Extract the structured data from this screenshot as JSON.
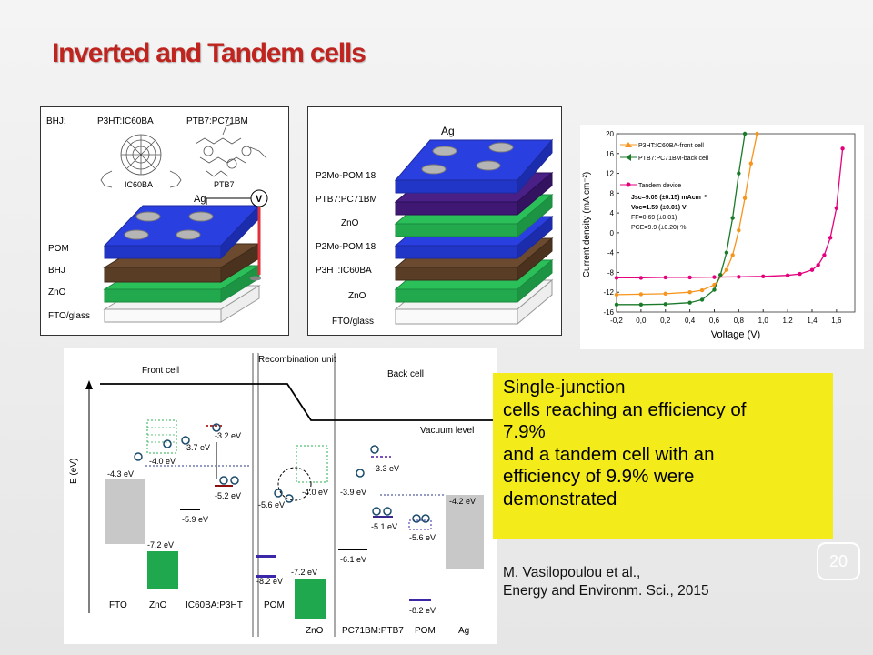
{
  "title": "Inverted and Tandem cells",
  "page_number": "20",
  "summary_box": {
    "color": "#f4eb1b",
    "lines": [
      "Single-junction",
      "cells reaching an efficiency of",
      "7.9%",
      "and a tandem cell with an",
      "efficiency of 9.9% were",
      "demonstrated"
    ]
  },
  "citation": {
    "line1": "M. Vasilopoulou et al.,",
    "line2": "Energy and Environm. Sci., 2015"
  },
  "device1": {
    "bhj_label": "BHJ:",
    "mol1": "P3HT:IC60BA",
    "mol2": "PTB7:PC71BM",
    "mol1_name": "IC60BA",
    "mol2_name": "PTB7",
    "ag": "Ag",
    "v": "V",
    "layers": [
      "POM",
      "BHJ",
      "ZnO",
      "FTO/glass"
    ]
  },
  "device2": {
    "ag": "Ag",
    "layers": [
      "P2Mo-POM 18",
      "PTB7:PC71BM",
      "ZnO",
      "P2Mo-POM 18",
      "P3HT:IC60BA",
      "ZnO",
      "FTO/glass"
    ]
  },
  "jv_chart": {
    "ylabel": "Current density (mA cm⁻²)",
    "xlabel": "Voltage (V)",
    "legend": [
      "P3HT:IC60BA-front cell",
      "PTB7:PC71BM-back cell",
      "Tandem device"
    ],
    "params": [
      "Jsc=9.05 (±0.15) mAcm⁻²",
      "Voc=1.59 (±0.01) V",
      "FF=0.69 (±0.01)",
      "PCE=9.9 (±0.20) %"
    ],
    "xticks": [
      "-0,2",
      "0,0",
      "0,2",
      "0,4",
      "0,6",
      "0,8",
      "1,0",
      "1,2",
      "1,4",
      "1,6"
    ],
    "yticks": [
      "20",
      "16",
      "12",
      "8",
      "4",
      "0",
      "-4",
      "-8",
      "-12",
      "-16"
    ]
  },
  "chart_data": {
    "type": "line",
    "xlabel": "Voltage (V)",
    "ylabel": "Current density (mA cm⁻²)",
    "xlim": [
      -0.2,
      1.75
    ],
    "ylim": [
      -16,
      20
    ],
    "series": [
      {
        "name": "P3HT:IC60BA-front cell",
        "color": "#f7941d",
        "x": [
          -0.2,
          0.0,
          0.2,
          0.4,
          0.5,
          0.6,
          0.7,
          0.75,
          0.8,
          0.85,
          0.9,
          0.95
        ],
        "y": [
          -12.5,
          -12.4,
          -12.3,
          -12.0,
          -11.6,
          -10.5,
          -7.5,
          -4.5,
          0.5,
          7,
          14,
          20
        ]
      },
      {
        "name": "PTB7:PC71BM-back cell",
        "color": "#1a7a2a",
        "x": [
          -0.2,
          0.0,
          0.2,
          0.4,
          0.5,
          0.6,
          0.65,
          0.7,
          0.75,
          0.8,
          0.85
        ],
        "y": [
          -14.5,
          -14.5,
          -14.4,
          -14.1,
          -13.5,
          -11.5,
          -8.5,
          -4.0,
          3.0,
          12,
          20
        ]
      },
      {
        "name": "Tandem device",
        "color": "#e4007c",
        "x": [
          -0.2,
          0.0,
          0.2,
          0.4,
          0.6,
          0.8,
          1.0,
          1.2,
          1.3,
          1.4,
          1.45,
          1.5,
          1.55,
          1.6,
          1.65
        ],
        "y": [
          -9.1,
          -9.1,
          -9.0,
          -9.0,
          -8.95,
          -8.9,
          -8.8,
          -8.6,
          -8.3,
          -7.5,
          -6.5,
          -4.5,
          -1.0,
          5.0,
          17
        ]
      }
    ]
  },
  "energy_diagram": {
    "headers": [
      "Front cell",
      "Recombination unit",
      "Back cell"
    ],
    "yaxis": "E (eV)",
    "vacuum": "Vacuum level",
    "levels": [
      "-4.3 eV",
      "-4.0 eV",
      "-3.7 eV",
      "-3.2 eV",
      "-5.2 eV",
      "-5.9 eV",
      "-7.2 eV",
      "-5.6 eV",
      "-8.2 eV",
      "-7.2 eV",
      "-4.0 eV",
      "-3.9 eV",
      "-3.3 eV",
      "-5.1 eV",
      "-5.6 eV",
      "-6.1 eV",
      "-8.2 eV",
      "-4.2 eV"
    ],
    "materials": [
      "FTO",
      "ZnO",
      "IC60BA:P3HT",
      "POM",
      "ZnO",
      "PC71BM:PTB7",
      "POM",
      "Ag"
    ]
  }
}
